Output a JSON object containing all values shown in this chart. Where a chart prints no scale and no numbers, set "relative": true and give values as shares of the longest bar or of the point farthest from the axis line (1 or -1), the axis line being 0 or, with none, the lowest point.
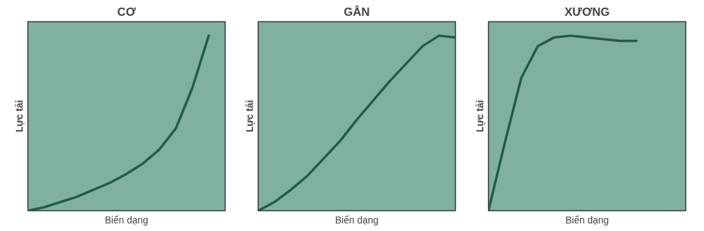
{
  "chart_data": [
    {
      "type": "line",
      "title": "CƠ",
      "xlabel": "Biến dạng",
      "ylabel": "Lực tải",
      "relative": true,
      "categories": [
        null,
        null,
        null,
        null,
        null,
        null,
        null,
        null,
        null,
        null,
        null,
        null,
        null
      ],
      "series": [
        {
          "color": "#1f5c48",
          "values": [
            0,
            0.02,
            0.05,
            0.08,
            0.12,
            0.16,
            0.21,
            0.27,
            0.35,
            0.47,
            0.7,
            1.0,
            null
          ]
        }
      ]
    },
    {
      "type": "line",
      "title": "GÂN",
      "xlabel": "Biến dạng",
      "ylabel": "Lực tải",
      "relative": true,
      "categories": [
        null,
        null,
        null,
        null,
        null,
        null,
        null,
        null,
        null,
        null,
        null,
        null,
        null
      ],
      "series": [
        {
          "color": "#1f5c48",
          "values": [
            0,
            0.05,
            0.12,
            0.2,
            0.3,
            0.4,
            0.52,
            0.63,
            0.74,
            0.84,
            0.94,
            1.0,
            0.99
          ]
        }
      ]
    },
    {
      "type": "line",
      "title": "XƯƠNG",
      "xlabel": "Biến dạng",
      "ylabel": "Lực tải",
      "relative": true,
      "categories": [
        null,
        null,
        null,
        null,
        null,
        null,
        null,
        null,
        null,
        null,
        null,
        null,
        null
      ],
      "series": [
        {
          "color": "#1f5c48",
          "values": [
            0,
            0.39,
            0.76,
            0.94,
            0.99,
            1.0,
            0.99,
            0.98,
            0.97,
            0.97,
            null,
            null,
            null
          ]
        }
      ]
    }
  ]
}
